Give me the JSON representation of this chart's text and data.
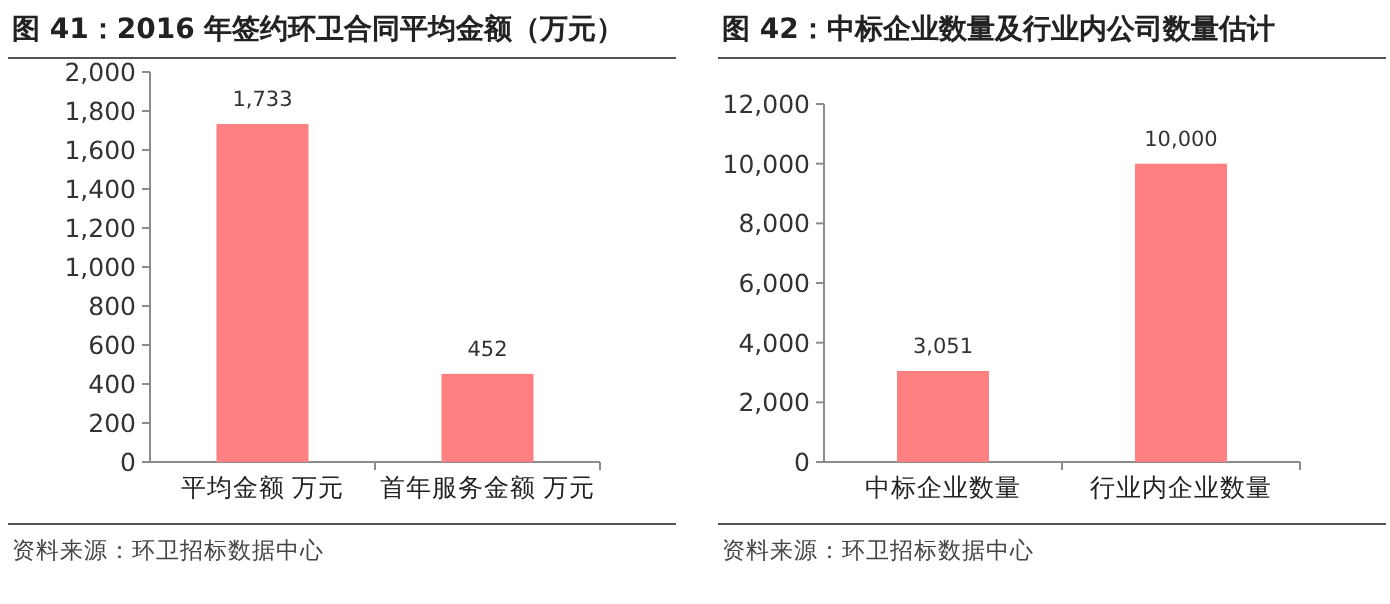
{
  "chart_data": [
    {
      "type": "bar",
      "title": "图 41：2016 年签约环卫合同平均金额（万元）",
      "categories": [
        "平均金额 万元",
        "首年服务金额 万元"
      ],
      "values": [
        1733,
        452
      ],
      "value_labels": [
        "1,733",
        "452"
      ],
      "color": "#fe8080",
      "ylim": [
        0,
        2000
      ],
      "yticks": [
        0,
        200,
        400,
        600,
        800,
        {
          "value": 1000,
          "label": "1,000"
        },
        {
          "value": 1200,
          "label": "1,200"
        },
        {
          "value": 1400,
          "label": "1,400"
        },
        {
          "value": 1600,
          "label": "1,600"
        },
        {
          "value": 1800,
          "label": "1,800"
        },
        {
          "value": 2000,
          "label": "2,000"
        }
      ],
      "annotations": [
        "资料来源：环卫招标数据中心"
      ]
    },
    {
      "type": "bar",
      "title": "图 42：中标企业数量及行业内公司数量估计",
      "categories": [
        "中标企业数量",
        "行业内企业数量"
      ],
      "values": [
        3051,
        10000
      ],
      "value_labels": [
        "3,051",
        "10,000"
      ],
      "color": "#fe8080",
      "ylim": [
        0,
        12000
      ],
      "yticks": [
        0,
        {
          "value": 2000,
          "label": "2,000"
        },
        {
          "value": 4000,
          "label": "4,000"
        },
        {
          "value": 6000,
          "label": "6,000"
        },
        {
          "value": 8000,
          "label": "8,000"
        },
        {
          "value": 10000,
          "label": "10,000"
        },
        {
          "value": 12000,
          "label": "12,000"
        }
      ],
      "annotations": [
        "资料来源：环卫招标数据中心"
      ]
    }
  ]
}
